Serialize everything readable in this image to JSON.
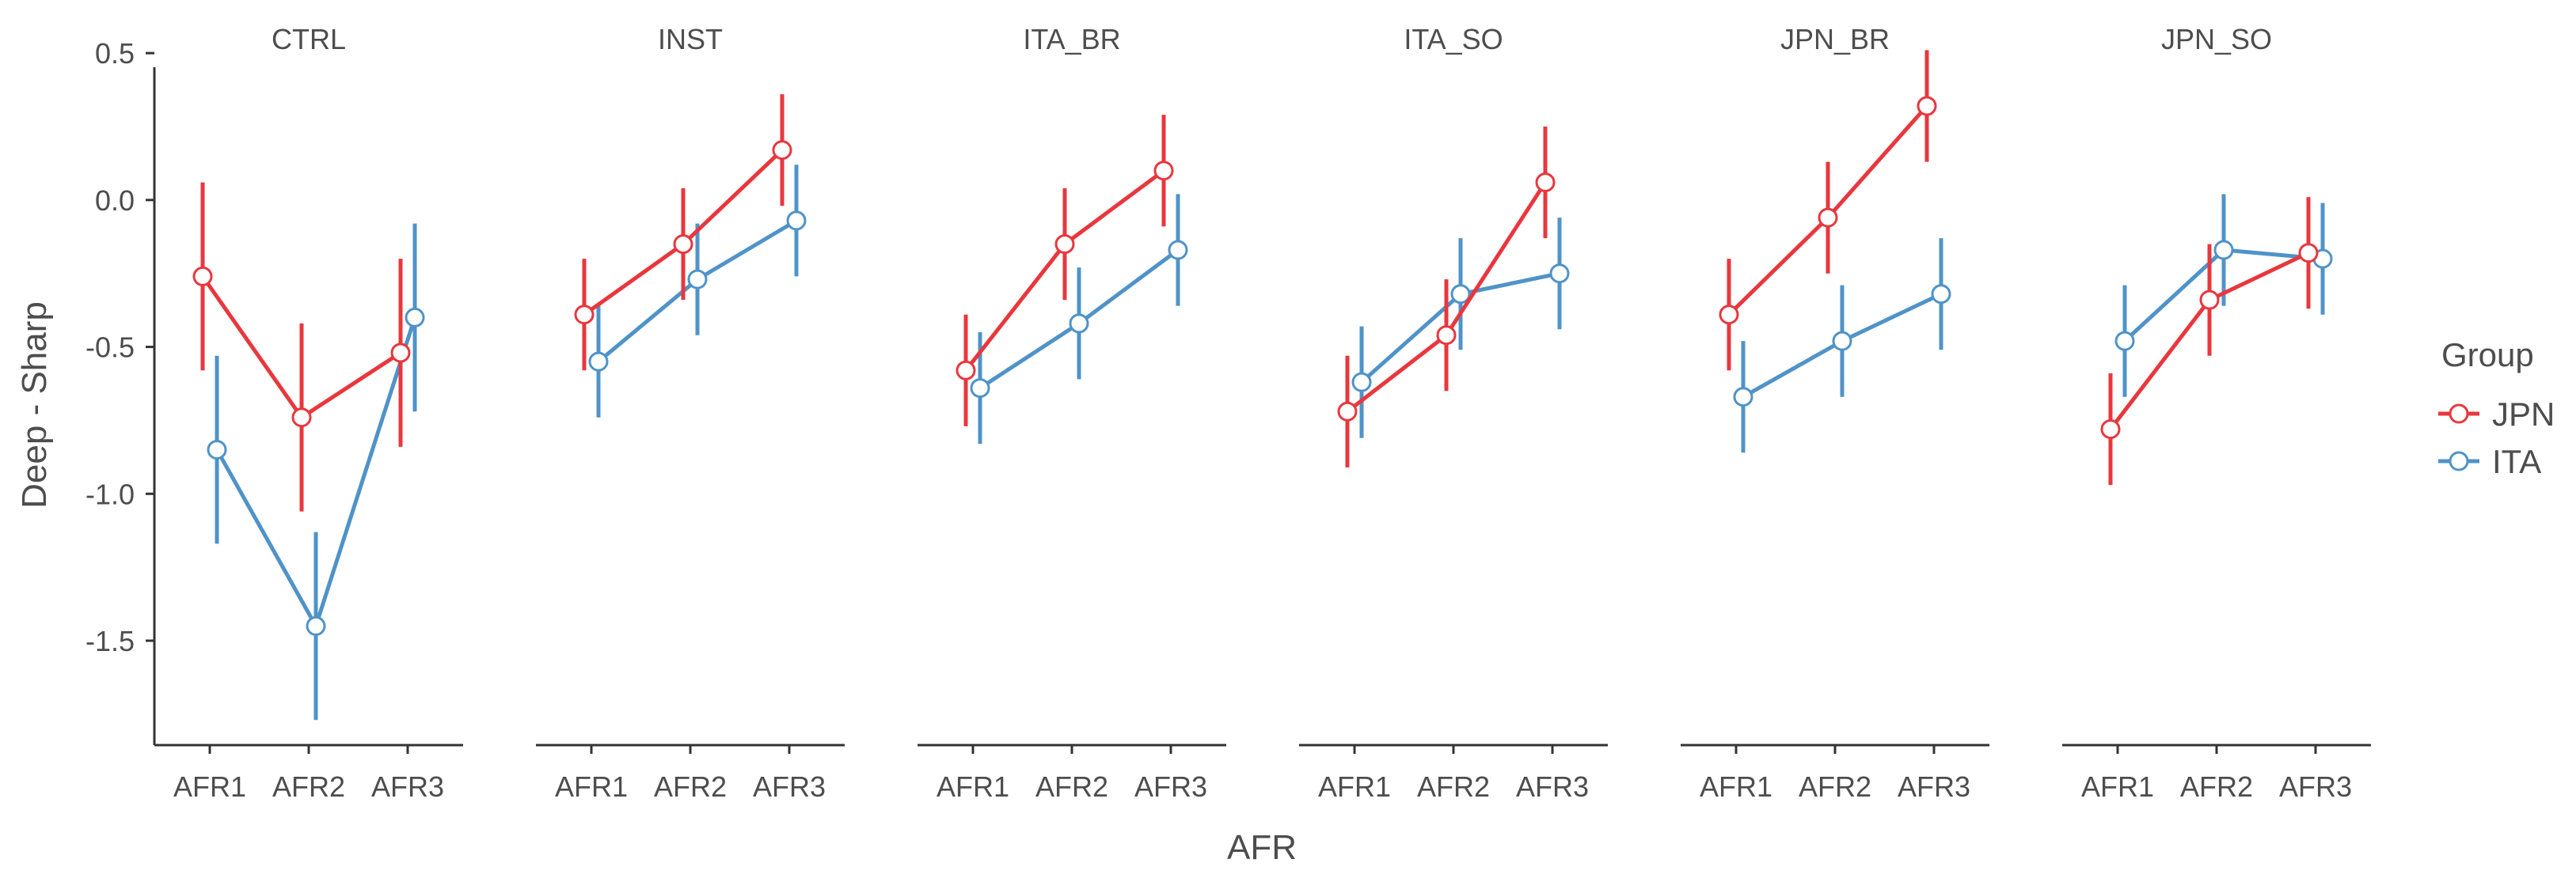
{
  "chart_data": {
    "type": "line",
    "facet_by": "condition",
    "xlabel": "AFR",
    "ylabel": "Deep - Sharp",
    "categories": [
      "AFR1",
      "AFR2",
      "AFR3"
    ],
    "ylim": [
      -1.85,
      0.6
    ],
    "yticks": [
      0.5,
      0.0,
      -0.5,
      -1.0,
      -1.5
    ],
    "ytick_labels": [
      "0.5",
      "0.0",
      "-0.5",
      "-1.0",
      "-1.5"
    ],
    "legend": {
      "title": "Group",
      "position": "right",
      "entries": [
        {
          "name": "JPN",
          "color": "#e8373d"
        },
        {
          "name": "ITA",
          "color": "#4f93c8"
        }
      ]
    },
    "panels": [
      {
        "title": "CTRL",
        "series": [
          {
            "name": "JPN",
            "values": [
              -0.26,
              -0.74,
              -0.52
            ],
            "lower": [
              -0.58,
              -1.06,
              -0.84
            ],
            "upper": [
              0.06,
              -0.42,
              -0.2
            ]
          },
          {
            "name": "ITA",
            "values": [
              -0.85,
              -1.45,
              -0.4
            ],
            "lower": [
              -1.17,
              -1.77,
              -0.72
            ],
            "upper": [
              -0.53,
              -1.13,
              -0.08
            ]
          }
        ]
      },
      {
        "title": "INST",
        "series": [
          {
            "name": "JPN",
            "values": [
              -0.39,
              -0.15,
              0.17
            ],
            "lower": [
              -0.58,
              -0.34,
              -0.02
            ],
            "upper": [
              -0.2,
              0.04,
              0.36
            ]
          },
          {
            "name": "ITA",
            "values": [
              -0.55,
              -0.27,
              -0.07
            ],
            "lower": [
              -0.74,
              -0.46,
              -0.26
            ],
            "upper": [
              -0.36,
              -0.08,
              0.12
            ]
          }
        ]
      },
      {
        "title": "ITA_BR",
        "series": [
          {
            "name": "JPN",
            "values": [
              -0.58,
              -0.15,
              0.1
            ],
            "lower": [
              -0.77,
              -0.34,
              -0.09
            ],
            "upper": [
              -0.39,
              0.04,
              0.29
            ]
          },
          {
            "name": "ITA",
            "values": [
              -0.64,
              -0.42,
              -0.17
            ],
            "lower": [
              -0.83,
              -0.61,
              -0.36
            ],
            "upper": [
              -0.45,
              -0.23,
              0.02
            ]
          }
        ]
      },
      {
        "title": "ITA_SO",
        "series": [
          {
            "name": "JPN",
            "values": [
              -0.72,
              -0.46,
              0.06
            ],
            "lower": [
              -0.91,
              -0.65,
              -0.13
            ],
            "upper": [
              -0.53,
              -0.27,
              0.25
            ]
          },
          {
            "name": "ITA",
            "values": [
              -0.62,
              -0.32,
              -0.25
            ],
            "lower": [
              -0.81,
              -0.51,
              -0.44
            ],
            "upper": [
              -0.43,
              -0.13,
              -0.06
            ]
          }
        ]
      },
      {
        "title": "JPN_BR",
        "series": [
          {
            "name": "JPN",
            "values": [
              -0.39,
              -0.06,
              0.32
            ],
            "lower": [
              -0.58,
              -0.25,
              0.13
            ],
            "upper": [
              -0.2,
              0.13,
              0.51
            ]
          },
          {
            "name": "ITA",
            "values": [
              -0.67,
              -0.48,
              -0.32
            ],
            "lower": [
              -0.86,
              -0.67,
              -0.51
            ],
            "upper": [
              -0.48,
              -0.29,
              -0.13
            ]
          }
        ]
      },
      {
        "title": "JPN_SO",
        "series": [
          {
            "name": "JPN",
            "values": [
              -0.78,
              -0.34,
              -0.18
            ],
            "lower": [
              -0.97,
              -0.53,
              -0.37
            ],
            "upper": [
              -0.59,
              -0.15,
              0.01
            ]
          },
          {
            "name": "ITA",
            "values": [
              -0.48,
              -0.17,
              -0.2
            ],
            "lower": [
              -0.67,
              -0.36,
              -0.39
            ],
            "upper": [
              -0.29,
              0.02,
              -0.01
            ]
          }
        ]
      }
    ]
  }
}
